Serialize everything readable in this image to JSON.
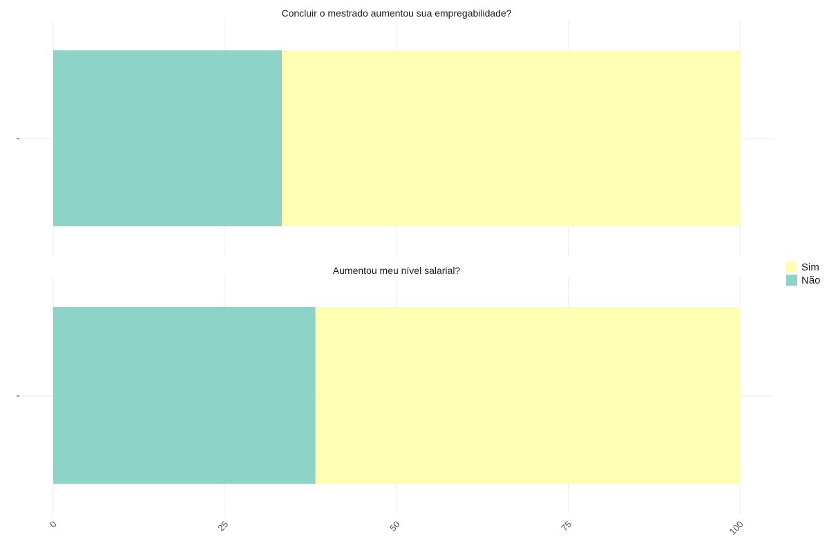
{
  "chart_data": [
    {
      "type": "bar",
      "orientation": "horizontal",
      "stacked": true,
      "title": "Concluir o mestrado aumentou sua empregabilidade?",
      "series": [
        {
          "name": "Não",
          "values": [
            33.3
          ]
        },
        {
          "name": "Sim",
          "values": [
            66.7
          ]
        }
      ],
      "xlim": [
        0,
        100
      ],
      "xticks": [
        "0",
        "25",
        "50",
        "75",
        "100"
      ],
      "grid": true
    },
    {
      "type": "bar",
      "orientation": "horizontal",
      "stacked": true,
      "title": "Aumentou meu nível salarial?",
      "series": [
        {
          "name": "Não",
          "values": [
            38.2
          ]
        },
        {
          "name": "Sim",
          "values": [
            61.8
          ]
        }
      ],
      "xlim": [
        0,
        100
      ],
      "xticks": [
        "0",
        "25",
        "50",
        "75",
        "100"
      ],
      "grid": true
    }
  ],
  "legend": {
    "placement": "right",
    "items": [
      {
        "label": "Sim",
        "color": "#ffffb3"
      },
      {
        "label": "Não",
        "color": "#8dd3c7"
      }
    ]
  },
  "colors": {
    "Sim": "#ffffb3",
    "Não": "#8dd3c7",
    "grid": "#ebebeb"
  }
}
